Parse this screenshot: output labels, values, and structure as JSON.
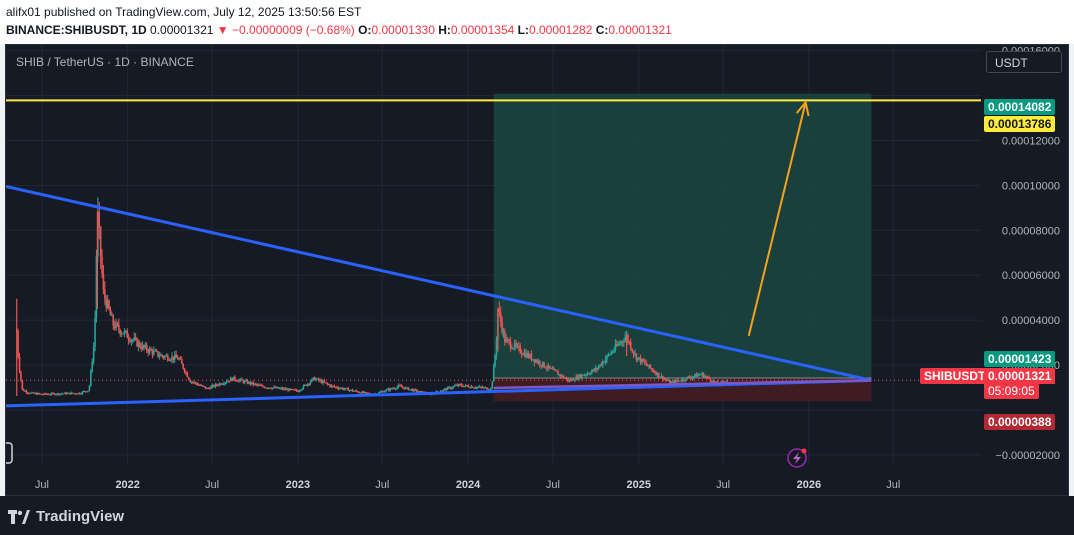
{
  "header": {
    "publisher_line": "alifx01 published on TradingView.com, July 12, 2025 13:50:56 EST",
    "symbol": "BINANCE:SHIBUSDT, 1D",
    "last_price": "0.00001321",
    "change": "−0.00000009 (−0.68%)",
    "o_label": "O:",
    "o_value": "0.00001330",
    "h_label": "H:",
    "h_value": "0.00001354",
    "l_label": "L:",
    "l_value": "0.00001282",
    "c_label": "C:",
    "c_value": "0.00001321"
  },
  "chart_title": "SHIB / TetherUS · 1D · BINANCE",
  "currency_button": "USDT",
  "colors": {
    "background": "#161a25",
    "candle_up": "#26a69a",
    "candle_down": "#ef5350",
    "trendline": "#2962ff",
    "support": "#7e57c2",
    "target_line": "#ffeb3b",
    "target_zone": "#1b4d46",
    "stop_zone": "#4a1c22",
    "arrow": "#f7a21b"
  },
  "tags": {
    "target_zone_top": "0.00014082",
    "yellow_line": "0.00013786",
    "zone_entry": "0.00001423",
    "symbol_label": "SHIBUSDT",
    "current_price": "0.00001321",
    "countdown": "05:09:05",
    "stop_zone_bottom": "0.00000388"
  },
  "footer": {
    "brand": "TradingView"
  },
  "chart_data": {
    "type": "candlestick",
    "title": "SHIB / TetherUS · 1D · BINANCE",
    "y_axis": {
      "ticks": [
        -2e-05,
        0,
        2e-05,
        4e-05,
        6e-05,
        8e-05,
        0.0001,
        0.00012,
        0.00014,
        0.00016
      ],
      "tick_labels": [
        "−0.00002000",
        "",
        "0.00002000",
        "0.00004000",
        "0.00006000",
        "0.00008000",
        "0.00010000",
        "0.00012000",
        "",
        "0.00016000"
      ],
      "range": [
        -2.45e-05,
        0.0001625
      ]
    },
    "x_axis": {
      "range": [
        "2021-04-15",
        "2027-07-15"
      ],
      "ticks": [
        {
          "date": "2021-07-01",
          "label": "Jul"
        },
        {
          "date": "2022-01-01",
          "label": "2022",
          "year": true
        },
        {
          "date": "2022-07-01",
          "label": "Jul"
        },
        {
          "date": "2023-01-01",
          "label": "2023",
          "year": true
        },
        {
          "date": "2023-07-01",
          "label": "Jul"
        },
        {
          "date": "2024-01-01",
          "label": "2024",
          "year": true
        },
        {
          "date": "2024-07-01",
          "label": "Jul"
        },
        {
          "date": "2025-01-01",
          "label": "2025",
          "year": true
        },
        {
          "date": "2025-07-01",
          "label": "Jul"
        },
        {
          "date": "2026-01-01",
          "label": "2026",
          "year": true
        },
        {
          "date": "2026-07-01",
          "label": "Jul"
        }
      ]
    },
    "price_path": [
      [
        "2021-05-08",
        3.5e-05
      ],
      [
        "2021-05-12",
        2.1e-05
      ],
      [
        "2021-05-20",
        9e-06
      ],
      [
        "2021-06-05",
        7.5e-06
      ],
      [
        "2021-07-01",
        7e-06
      ],
      [
        "2021-08-01",
        7.2e-06
      ],
      [
        "2021-09-20",
        7.5e-06
      ],
      [
        "2021-10-10",
        9e-06
      ],
      [
        "2021-10-22",
        3.2e-05
      ],
      [
        "2021-10-28",
        8.8e-05
      ],
      [
        "2021-11-10",
        5.2e-05
      ],
      [
        "2021-12-01",
        3.8e-05
      ],
      [
        "2022-01-01",
        3.3e-05
      ],
      [
        "2022-02-01",
        2.8e-05
      ],
      [
        "2022-03-15",
        2.4e-05
      ],
      [
        "2022-04-20",
        2.3e-05
      ],
      [
        "2022-05-15",
        1.3e-05
      ],
      [
        "2022-06-20",
        9.5e-06
      ],
      [
        "2022-08-15",
        1.4e-05
      ],
      [
        "2022-10-15",
        1.05e-05
      ],
      [
        "2023-01-01",
        8.5e-06
      ],
      [
        "2023-02-05",
        1.4e-05
      ],
      [
        "2023-03-15",
        1.05e-05
      ],
      [
        "2023-06-10",
        6.8e-06
      ],
      [
        "2023-08-05",
        1.05e-05
      ],
      [
        "2023-10-10",
        6.9e-06
      ],
      [
        "2023-12-10",
        1.1e-05
      ],
      [
        "2024-02-20",
        9.5e-06
      ],
      [
        "2024-03-01",
        2.8e-05
      ],
      [
        "2024-03-05",
        4.5e-05
      ],
      [
        "2024-03-20",
        3.1e-05
      ],
      [
        "2024-05-10",
        2.4e-05
      ],
      [
        "2024-08-05",
        1.3e-05
      ],
      [
        "2024-10-01",
        1.8e-05
      ],
      [
        "2024-12-05",
        3.3e-05
      ],
      [
        "2024-12-25",
        2.4e-05
      ],
      [
        "2025-02-10",
        1.6e-05
      ],
      [
        "2025-03-10",
        1.2e-05
      ],
      [
        "2025-05-15",
        1.6e-05
      ],
      [
        "2025-06-20",
        1.13e-05
      ],
      [
        "2025-07-11",
        1.321e-05
      ]
    ],
    "drawings": {
      "yellow_horizontal_line": 0.00013786,
      "target_zone": {
        "from": "2024-02-25",
        "to": "2026-05-15",
        "top": 0.00014082,
        "bottom": 1.423e-05
      },
      "stop_zone": {
        "from": "2024-02-25",
        "to": "2026-05-15",
        "top": 1.423e-05,
        "bottom": 3.88e-06
      },
      "descending_trendline": [
        [
          "2021-04-15",
          9.95e-05
        ],
        [
          "2026-05-15",
          1.32e-05
        ]
      ],
      "support_line": [
        [
          "2021-04-15",
          1.8e-06
        ],
        [
          "2026-05-15",
          1.32e-05
        ]
      ],
      "arrow": [
        [
          "2025-08-25",
          3.3e-05
        ],
        [
          "2025-12-25",
          0.000137
        ]
      ]
    }
  }
}
